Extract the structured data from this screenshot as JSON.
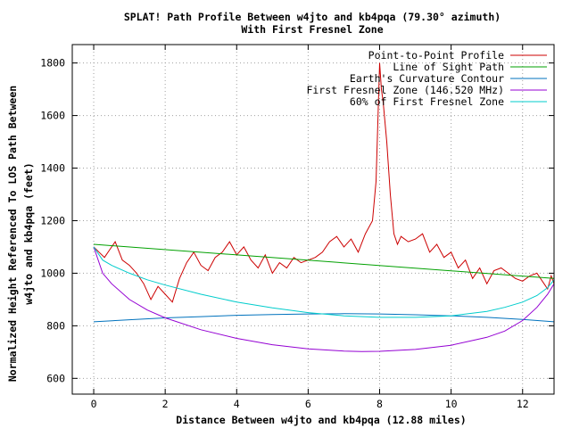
{
  "chart_data": {
    "type": "line",
    "title": "SPLAT! Path Profile Between w4jto and kb4pqa (79.30° azimuth)",
    "subtitle": "With First Fresnel Zone",
    "xlabel": "Distance Between w4jto and kb4pqa (12.88 miles)",
    "ylabel_lines": [
      "Normalized Height Referenced To LOS Path Between",
      "w4jto and kb4pqa (feet)"
    ],
    "xlim": [
      -0.6,
      12.88
    ],
    "ylim": [
      540,
      1870
    ],
    "xticks": [
      "0",
      "2",
      "4",
      "6",
      "8",
      "10",
      "12"
    ],
    "yticks": [
      "600",
      "800",
      "1000",
      "1200",
      "1400",
      "1600",
      "1800"
    ],
    "grid": true,
    "legend_position": "top-right",
    "series": [
      {
        "name": "Point-to-Point Profile",
        "color": "#cc0000",
        "x": [
          0,
          0.15,
          0.3,
          0.45,
          0.6,
          0.8,
          1.0,
          1.2,
          1.4,
          1.6,
          1.8,
          2.0,
          2.2,
          2.4,
          2.6,
          2.8,
          3.0,
          3.2,
          3.4,
          3.6,
          3.8,
          4.0,
          4.2,
          4.4,
          4.6,
          4.8,
          5.0,
          5.2,
          5.4,
          5.6,
          5.8,
          6.0,
          6.2,
          6.4,
          6.6,
          6.8,
          7.0,
          7.2,
          7.4,
          7.6,
          7.8,
          7.9,
          8.0,
          8.05,
          8.1,
          8.2,
          8.3,
          8.4,
          8.5,
          8.6,
          8.8,
          9.0,
          9.2,
          9.4,
          9.6,
          9.8,
          10.0,
          10.2,
          10.4,
          10.6,
          10.8,
          11.0,
          11.2,
          11.4,
          11.6,
          11.8,
          12.0,
          12.2,
          12.4,
          12.6,
          12.7,
          12.8,
          12.88
        ],
        "y": [
          1100,
          1080,
          1060,
          1090,
          1120,
          1050,
          1030,
          1000,
          960,
          900,
          950,
          920,
          890,
          980,
          1040,
          1080,
          1030,
          1010,
          1060,
          1080,
          1120,
          1070,
          1100,
          1050,
          1020,
          1070,
          1000,
          1040,
          1020,
          1060,
          1040,
          1050,
          1060,
          1080,
          1120,
          1140,
          1100,
          1130,
          1080,
          1150,
          1200,
          1350,
          1800,
          1700,
          1650,
          1500,
          1300,
          1150,
          1110,
          1140,
          1120,
          1130,
          1150,
          1080,
          1110,
          1060,
          1080,
          1020,
          1050,
          980,
          1020,
          960,
          1010,
          1020,
          1000,
          980,
          970,
          990,
          1000,
          960,
          940,
          990,
          960
        ]
      },
      {
        "name": "Line of Sight Path",
        "color": "#00a000",
        "x": [
          0,
          12.88
        ],
        "y": [
          1110,
          980
        ]
      },
      {
        "name": "Earth's Curvature Contour",
        "color": "#0072bd",
        "x": [
          0,
          1,
          2,
          3,
          4,
          5,
          6,
          7,
          8,
          9,
          10,
          11,
          12,
          12.88
        ],
        "y": [
          815,
          823,
          830,
          835,
          840,
          843,
          845,
          846,
          845,
          842,
          838,
          832,
          824,
          815
        ]
      },
      {
        "name": "First Fresnel Zone (146.520 MHz)",
        "color": "#9400d3",
        "x": [
          0,
          0.25,
          0.5,
          1,
          1.5,
          2,
          3,
          4,
          5,
          6,
          7,
          7.5,
          8,
          9,
          10,
          11,
          11.5,
          12,
          12.4,
          12.7,
          12.88
        ],
        "y": [
          1100,
          1000,
          960,
          900,
          860,
          830,
          785,
          752,
          728,
          712,
          704,
          702,
          703,
          710,
          726,
          756,
          780,
          820,
          870,
          920,
          960
        ]
      },
      {
        "name": "60% of First Fresnel Zone",
        "color": "#00cccc",
        "x": [
          0,
          0.25,
          0.5,
          1,
          1.5,
          2,
          3,
          4,
          5,
          6,
          7,
          8,
          9,
          10,
          11,
          11.5,
          12,
          12.4,
          12.7,
          12.88
        ],
        "y": [
          1100,
          1050,
          1030,
          1000,
          975,
          955,
          920,
          890,
          868,
          850,
          838,
          832,
          832,
          838,
          855,
          870,
          890,
          915,
          945,
          975
        ]
      }
    ]
  }
}
